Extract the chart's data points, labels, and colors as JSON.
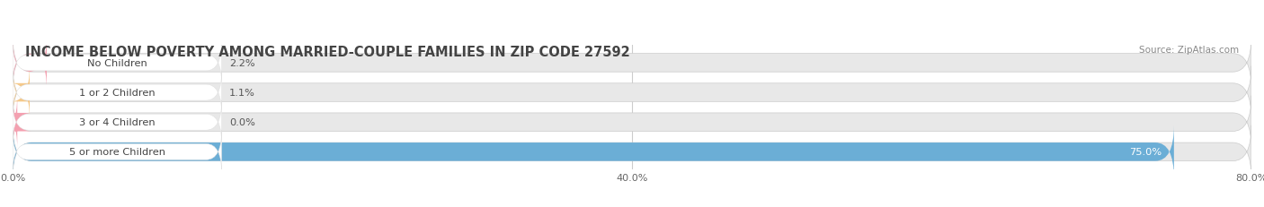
{
  "title": "INCOME BELOW POVERTY AMONG MARRIED-COUPLE FAMILIES IN ZIP CODE 27592",
  "source": "Source: ZipAtlas.com",
  "categories": [
    "No Children",
    "1 or 2 Children",
    "3 or 4 Children",
    "5 or more Children"
  ],
  "values": [
    2.2,
    1.1,
    0.0,
    75.0
  ],
  "bar_colors": [
    "#f4a0b0",
    "#f5c98a",
    "#f4a0b0",
    "#6baed6"
  ],
  "bar_bg_color": "#e8e8e8",
  "xlim": [
    0,
    80
  ],
  "xtick_labels": [
    "0.0%",
    "40.0%",
    "80.0%"
  ],
  "xtick_vals": [
    0,
    40,
    80
  ],
  "figsize": [
    14.06,
    2.32
  ],
  "dpi": 100,
  "title_fontsize": 10.5,
  "bar_height": 0.62,
  "background_color": "#ffffff",
  "text_color": "#444444",
  "source_color": "#888888",
  "grid_color": "#cccccc",
  "label_pill_color": "#ffffff",
  "value_label_inside_color": "#ffffff",
  "value_label_outside_color": "#555555"
}
